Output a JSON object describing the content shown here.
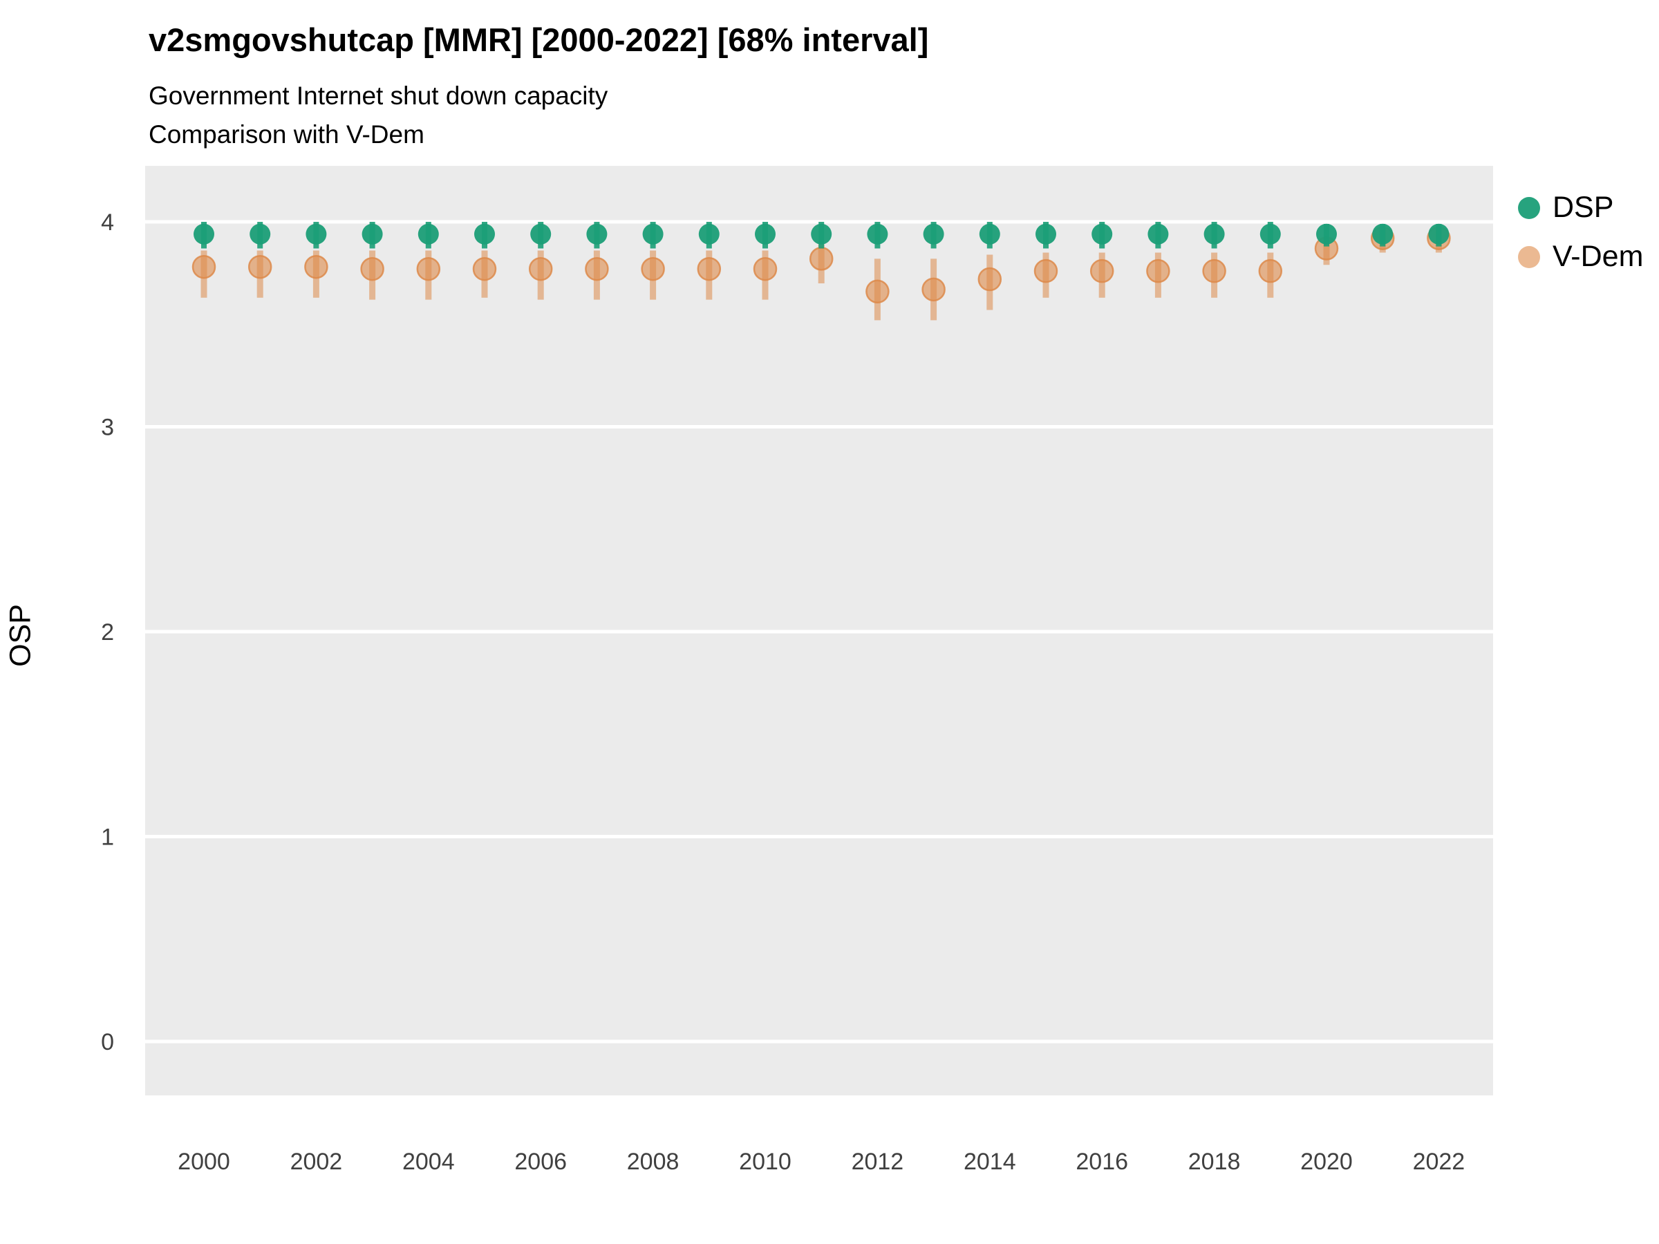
{
  "header": {
    "title": "v2smgovshutcap [MMR] [2000-2022] [68% interval]",
    "subtitle1": "Government Internet shut down capacity",
    "subtitle2": "Comparison with V-Dem"
  },
  "axes": {
    "y_label": "OSP"
  },
  "legend": {
    "items": [
      {
        "label": "DSP",
        "color": "#1b9e77"
      },
      {
        "label": "V-Dem",
        "color": "#dd8a4a"
      }
    ]
  },
  "chart_data": {
    "type": "scatter",
    "title": "v2smgovshutcap [MMR] [2000-2022] [68% interval]",
    "subtitle": "Government Internet shut down capacity / Comparison with V-Dem",
    "xlabel": "",
    "ylabel": "OSP",
    "x": [
      2000,
      2001,
      2002,
      2003,
      2004,
      2005,
      2006,
      2007,
      2008,
      2009,
      2010,
      2011,
      2012,
      2013,
      2014,
      2015,
      2016,
      2017,
      2018,
      2019,
      2020,
      2021,
      2022
    ],
    "xticks": [
      2000,
      2002,
      2004,
      2006,
      2008,
      2010,
      2012,
      2014,
      2016,
      2018,
      2020,
      2022
    ],
    "yticks": [
      0,
      1,
      2,
      3,
      4
    ],
    "ylim": [
      -0.27,
      4.27
    ],
    "interval": "68%",
    "grid": "horizontal-white-on-gray",
    "legend_position": "right-top",
    "series": [
      {
        "name": "DSP",
        "color": "#1b9e77",
        "values": [
          3.94,
          3.94,
          3.94,
          3.94,
          3.94,
          3.94,
          3.94,
          3.94,
          3.94,
          3.94,
          3.94,
          3.94,
          3.94,
          3.94,
          3.94,
          3.94,
          3.94,
          3.94,
          3.94,
          3.94,
          3.94,
          3.94,
          3.94
        ],
        "lo": [
          3.87,
          3.87,
          3.87,
          3.87,
          3.87,
          3.87,
          3.87,
          3.87,
          3.87,
          3.87,
          3.87,
          3.87,
          3.87,
          3.87,
          3.87,
          3.87,
          3.87,
          3.87,
          3.87,
          3.87,
          3.88,
          3.88,
          3.88
        ],
        "hi": [
          4.0,
          4.0,
          4.0,
          4.0,
          4.0,
          4.0,
          4.0,
          4.0,
          4.0,
          4.0,
          4.0,
          4.0,
          4.0,
          4.0,
          4.0,
          4.0,
          4.0,
          4.0,
          4.0,
          4.0,
          3.99,
          3.99,
          3.99
        ]
      },
      {
        "name": "V-Dem",
        "color": "#dd8a4a",
        "values": [
          3.78,
          3.78,
          3.78,
          3.77,
          3.77,
          3.77,
          3.77,
          3.77,
          3.77,
          3.77,
          3.77,
          3.82,
          3.66,
          3.67,
          3.72,
          3.76,
          3.76,
          3.76,
          3.76,
          3.76,
          3.87,
          3.92,
          3.92
        ],
        "lo": [
          3.63,
          3.63,
          3.63,
          3.62,
          3.62,
          3.63,
          3.62,
          3.62,
          3.62,
          3.62,
          3.62,
          3.7,
          3.52,
          3.52,
          3.57,
          3.63,
          3.63,
          3.63,
          3.63,
          3.63,
          3.79,
          3.85,
          3.85
        ],
        "hi": [
          3.86,
          3.86,
          3.86,
          3.86,
          3.86,
          3.86,
          3.86,
          3.86,
          3.86,
          3.86,
          3.86,
          3.89,
          3.82,
          3.82,
          3.84,
          3.85,
          3.85,
          3.85,
          3.85,
          3.85,
          3.92,
          3.97,
          3.97
        ]
      }
    ]
  }
}
